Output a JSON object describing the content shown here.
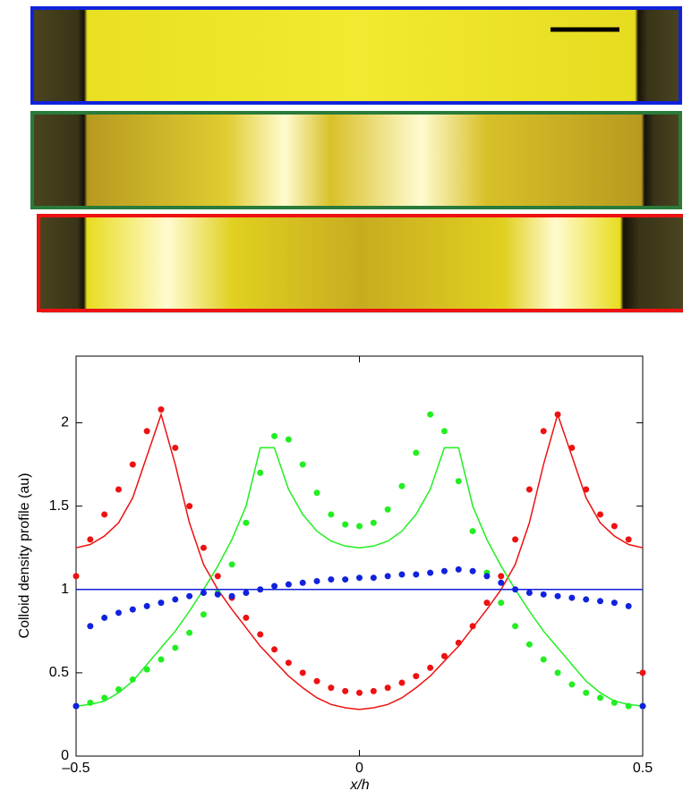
{
  "chart_data": {
    "type": "line",
    "xlabel": "x/h",
    "ylabel": "Colloid density profile (au)",
    "xlim": [
      -0.5,
      0.5
    ],
    "ylim": [
      0,
      2.4
    ],
    "xticks": [
      {
        "value": -0.5,
        "label": "–0.5"
      },
      0,
      0.5
    ],
    "yticks": [
      0,
      0.5,
      1,
      1.5,
      2
    ],
    "x": [
      -0.5,
      -0.475,
      -0.45,
      -0.425,
      -0.4,
      -0.375,
      -0.35,
      -0.325,
      -0.3,
      -0.275,
      -0.25,
      -0.225,
      -0.2,
      -0.175,
      -0.15,
      -0.125,
      -0.1,
      -0.075,
      -0.05,
      -0.025,
      0,
      0.025,
      0.05,
      0.075,
      0.1,
      0.125,
      0.15,
      0.175,
      0.2,
      0.225,
      0.25,
      0.275,
      0.3,
      0.325,
      0.35,
      0.375,
      0.4,
      0.425,
      0.45,
      0.475,
      0.5
    ],
    "series": [
      {
        "color": "#ee1111",
        "style": "dots",
        "values": [
          1.08,
          1.3,
          1.45,
          1.6,
          1.75,
          1.95,
          2.08,
          1.85,
          1.5,
          1.25,
          1.08,
          0.95,
          0.83,
          0.73,
          0.64,
          0.56,
          0.5,
          0.45,
          0.41,
          0.39,
          0.38,
          0.39,
          0.41,
          0.44,
          0.48,
          0.53,
          0.6,
          0.68,
          0.78,
          0.92,
          1.08,
          1.3,
          1.6,
          1.95,
          2.05,
          1.85,
          1.6,
          1.45,
          1.38,
          1.3,
          0.5
        ]
      },
      {
        "color": "#ee1111",
        "style": "line",
        "values": [
          1.25,
          1.27,
          1.32,
          1.4,
          1.55,
          1.8,
          2.05,
          1.75,
          1.4,
          1.15,
          1.0,
          0.88,
          0.77,
          0.66,
          0.57,
          0.48,
          0.41,
          0.35,
          0.31,
          0.29,
          0.28,
          0.29,
          0.31,
          0.35,
          0.41,
          0.48,
          0.57,
          0.66,
          0.77,
          0.88,
          1.0,
          1.15,
          1.4,
          1.75,
          2.05,
          1.8,
          1.55,
          1.4,
          1.32,
          1.27,
          1.25
        ]
      },
      {
        "color": "#22ee22",
        "style": "dots",
        "values": [
          0.3,
          0.32,
          0.35,
          0.4,
          0.46,
          0.52,
          0.58,
          0.65,
          0.74,
          0.85,
          0.98,
          1.15,
          1.4,
          1.7,
          1.92,
          1.9,
          1.75,
          1.58,
          1.45,
          1.39,
          1.38,
          1.4,
          1.48,
          1.62,
          1.82,
          2.05,
          1.95,
          1.65,
          1.35,
          1.1,
          0.92,
          0.78,
          0.67,
          0.58,
          0.5,
          0.43,
          0.38,
          0.35,
          0.32,
          0.3,
          0.3
        ]
      },
      {
        "color": "#22ee22",
        "style": "line",
        "values": [
          0.3,
          0.31,
          0.33,
          0.38,
          0.45,
          0.55,
          0.65,
          0.75,
          0.87,
          1.0,
          1.14,
          1.3,
          1.5,
          1.85,
          1.85,
          1.6,
          1.45,
          1.35,
          1.29,
          1.26,
          1.25,
          1.26,
          1.29,
          1.35,
          1.45,
          1.6,
          1.85,
          1.85,
          1.5,
          1.3,
          1.14,
          1.0,
          0.87,
          0.75,
          0.65,
          0.55,
          0.45,
          0.38,
          0.33,
          0.31,
          0.3
        ]
      },
      {
        "color": "#1122dd",
        "style": "dots",
        "values": [
          0.3,
          0.78,
          0.83,
          0.86,
          0.88,
          0.9,
          0.92,
          0.94,
          0.96,
          0.98,
          0.97,
          0.96,
          0.98,
          1.0,
          1.02,
          1.03,
          1.04,
          1.05,
          1.06,
          1.06,
          1.07,
          1.07,
          1.08,
          1.09,
          1.09,
          1.1,
          1.11,
          1.12,
          1.11,
          1.08,
          1.04,
          1.0,
          0.98,
          0.97,
          0.96,
          0.95,
          0.94,
          0.93,
          0.92,
          0.9,
          0.3
        ]
      },
      {
        "color": "#1122dd",
        "style": "line",
        "x": [
          -0.5,
          0.5
        ],
        "values": [
          1,
          1
        ]
      }
    ]
  }
}
